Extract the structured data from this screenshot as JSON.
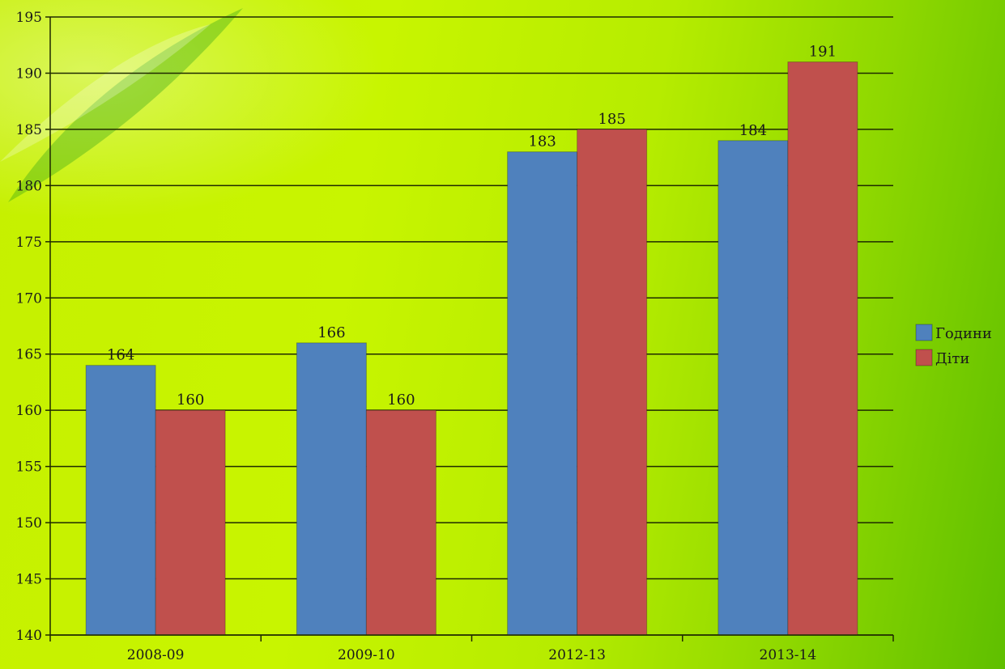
{
  "chart_data": {
    "type": "bar",
    "categories": [
      "2008-09",
      "2009-10",
      "2012-13",
      "2013-14"
    ],
    "series": [
      {
        "name": "Години",
        "values": [
          164,
          166,
          183,
          184
        ],
        "color": "#4f81bd"
      },
      {
        "name": "Діти",
        "values": [
          160,
          160,
          185,
          191
        ],
        "color": "#c0504d"
      }
    ],
    "ylim": [
      140,
      195
    ],
    "ytick_step": 5,
    "grid": true,
    "legend_position": "right",
    "data_labels": true
  }
}
